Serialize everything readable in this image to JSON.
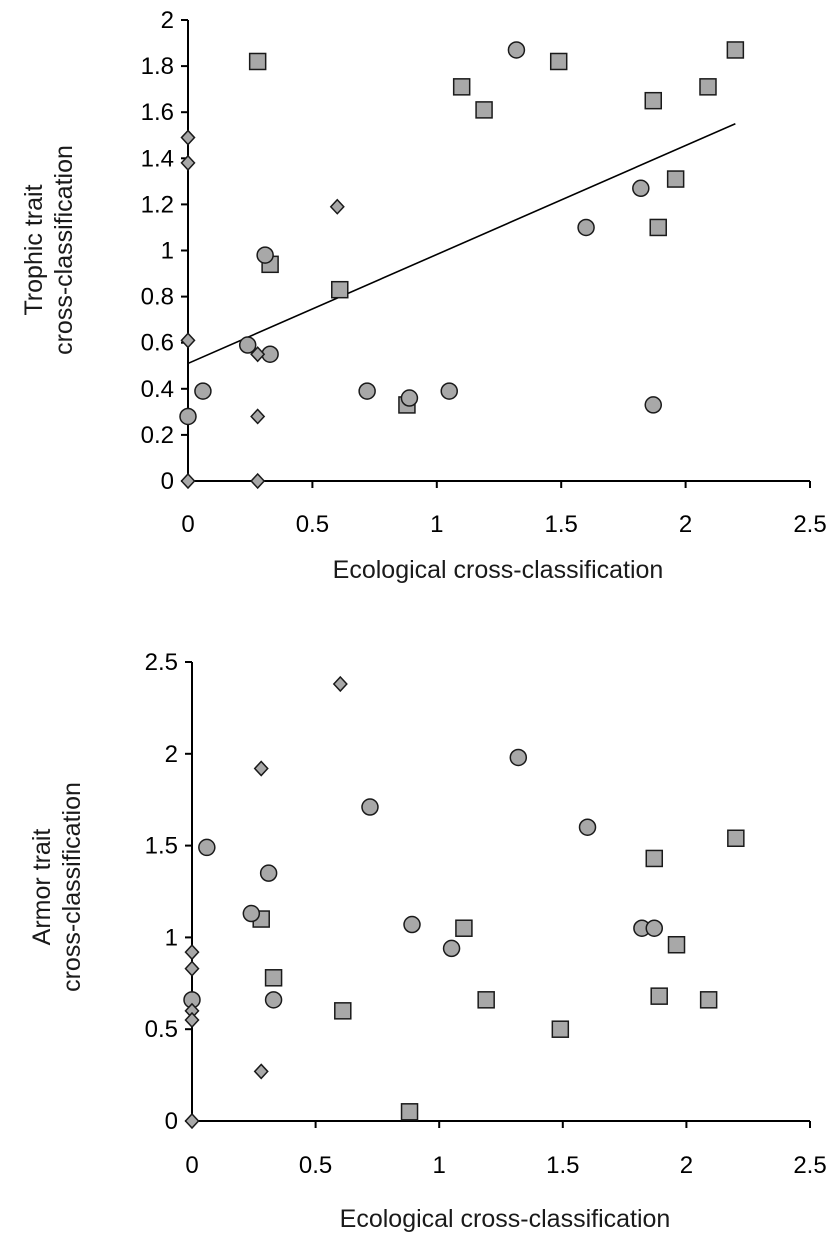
{
  "chart_data": [
    {
      "type": "scatter",
      "xlabel": "Ecological  cross-classification",
      "ylabel_lines": [
        "Trophic trait",
        "cross-classification"
      ],
      "xlim": [
        0,
        2.5
      ],
      "ylim": [
        0,
        2
      ],
      "xticks": [
        0,
        0.5,
        1,
        1.5,
        2,
        2.5
      ],
      "yticks": [
        0,
        0.2,
        0.4,
        0.6,
        0.8,
        1,
        1.2,
        1.4,
        1.6,
        1.8,
        2
      ],
      "xtick_labels": [
        "0",
        "0.5",
        "1",
        "1.5",
        "2",
        "2.5"
      ],
      "ytick_labels": [
        "0",
        "0.2",
        "0.4",
        "0.6",
        "0.8",
        "1",
        "1.2",
        "1.4",
        "1.6",
        "1.8",
        "2"
      ],
      "trendline": {
        "x": [
          0,
          2.2
        ],
        "y": [
          0.51,
          1.55
        ]
      },
      "series": [
        {
          "marker": "square",
          "color": "#a8a8a8",
          "points": [
            [
              0.28,
              1.82
            ],
            [
              1.1,
              1.71
            ],
            [
              1.19,
              1.61
            ],
            [
              1.49,
              1.82
            ],
            [
              1.87,
              1.65
            ],
            [
              2.09,
              1.71
            ],
            [
              2.2,
              1.87
            ],
            [
              1.96,
              1.31
            ],
            [
              1.89,
              1.1
            ],
            [
              0.33,
              0.94
            ],
            [
              0.61,
              0.83
            ],
            [
              0.88,
              0.33
            ]
          ]
        },
        {
          "marker": "circle",
          "color": "#a8a8a8",
          "points": [
            [
              1.32,
              1.87
            ],
            [
              1.82,
              1.27
            ],
            [
              1.6,
              1.1
            ],
            [
              0.31,
              0.98
            ],
            [
              0.24,
              0.59
            ],
            [
              0.33,
              0.55
            ],
            [
              0.06,
              0.39
            ],
            [
              0.0,
              0.28
            ],
            [
              0.72,
              0.39
            ],
            [
              0.89,
              0.36
            ],
            [
              1.05,
              0.39
            ],
            [
              1.87,
              0.33
            ]
          ]
        },
        {
          "marker": "diamond",
          "color": "#a8a8a8",
          "points": [
            [
              0.0,
              1.49
            ],
            [
              0.0,
              1.38
            ],
            [
              0.0,
              0.61
            ],
            [
              0.0,
              0.0
            ],
            [
              0.6,
              1.19
            ],
            [
              0.28,
              0.55
            ],
            [
              0.28,
              0.28
            ],
            [
              0.28,
              0.0
            ]
          ]
        }
      ]
    },
    {
      "type": "scatter",
      "xlabel": "Ecological cross-classification",
      "ylabel_lines": [
        "Armor trait",
        "cross-classification"
      ],
      "xlim": [
        0,
        2.5
      ],
      "ylim": [
        0,
        2.5
      ],
      "xticks": [
        0,
        0.5,
        1,
        1.5,
        2,
        2.5
      ],
      "yticks": [
        0,
        0.5,
        1,
        1.5,
        2,
        2.5
      ],
      "xtick_labels": [
        "0",
        "0.5",
        "1",
        "1.5",
        "2",
        "2.5"
      ],
      "ytick_labels": [
        "0",
        "0.5",
        "1",
        "1.5",
        "2",
        "2.5"
      ],
      "series": [
        {
          "marker": "square",
          "color": "#a8a8a8",
          "points": [
            [
              2.2,
              1.54
            ],
            [
              1.87,
              1.43
            ],
            [
              1.1,
              1.05
            ],
            [
              1.96,
              0.96
            ],
            [
              0.28,
              1.1
            ],
            [
              0.33,
              0.78
            ],
            [
              1.19,
              0.66
            ],
            [
              1.89,
              0.68
            ],
            [
              2.09,
              0.66
            ],
            [
              0.61,
              0.6
            ],
            [
              1.49,
              0.5
            ],
            [
              0.88,
              0.05
            ]
          ]
        },
        {
          "marker": "circle",
          "color": "#a8a8a8",
          "points": [
            [
              1.32,
              1.98
            ],
            [
              0.72,
              1.71
            ],
            [
              1.6,
              1.6
            ],
            [
              0.06,
              1.49
            ],
            [
              0.31,
              1.35
            ],
            [
              0.24,
              1.13
            ],
            [
              0.89,
              1.07
            ],
            [
              1.05,
              0.94
            ],
            [
              1.82,
              1.05
            ],
            [
              1.87,
              1.05
            ],
            [
              0.0,
              0.66
            ],
            [
              0.33,
              0.66
            ]
          ]
        },
        {
          "marker": "diamond",
          "color": "#a8a8a8",
          "points": [
            [
              0.6,
              2.38
            ],
            [
              0.28,
              1.92
            ],
            [
              0.0,
              0.92
            ],
            [
              0.0,
              0.83
            ],
            [
              0.0,
              0.6
            ],
            [
              0.0,
              0.55
            ],
            [
              0.28,
              0.27
            ],
            [
              0.0,
              0.0
            ]
          ]
        }
      ]
    }
  ]
}
